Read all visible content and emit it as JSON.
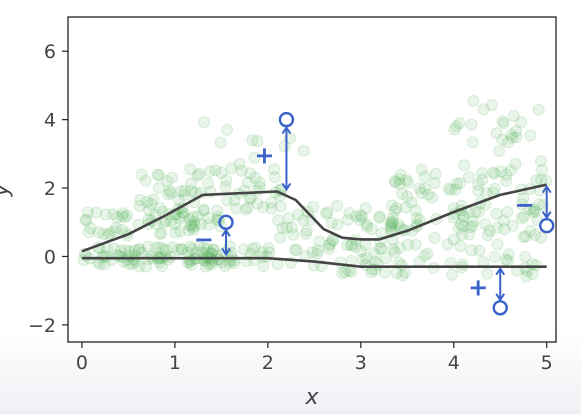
{
  "chart_data": {
    "type": "scatter",
    "title": "",
    "xlabel": "x",
    "ylabel": "y",
    "xlim": [
      -0.15,
      5.1
    ],
    "ylim": [
      -2.5,
      7.0
    ],
    "x_ticks": [
      "0",
      "1",
      "2",
      "3",
      "4",
      "5"
    ],
    "y_ticks": [
      "−2",
      "0",
      "2",
      "4",
      "6"
    ],
    "x_tick_values": [
      0,
      1,
      2,
      3,
      4,
      5
    ],
    "y_tick_values": [
      -2,
      0,
      2,
      4,
      6
    ],
    "grid": false,
    "scatter_color": "#4caf50",
    "line_color": "#444444",
    "annotation_color": "#3a62c8",
    "series": [
      {
        "type": "line",
        "points": [
          {
            "x": 0.0,
            "y": 0.15
          },
          {
            "x": 0.5,
            "y": 0.65
          },
          {
            "x": 0.9,
            "y": 1.2
          },
          {
            "x": 1.3,
            "y": 1.8
          },
          {
            "x": 1.7,
            "y": 1.85
          },
          {
            "x": 2.1,
            "y": 1.9
          },
          {
            "x": 2.3,
            "y": 1.65
          },
          {
            "x": 2.6,
            "y": 0.8
          },
          {
            "x": 2.8,
            "y": 0.55
          },
          {
            "x": 3.0,
            "y": 0.5
          },
          {
            "x": 3.2,
            "y": 0.5
          },
          {
            "x": 3.5,
            "y": 0.75
          },
          {
            "x": 4.0,
            "y": 1.3
          },
          {
            "x": 4.5,
            "y": 1.8
          },
          {
            "x": 5.0,
            "y": 2.1
          }
        ]
      },
      {
        "type": "line",
        "points": [
          {
            "x": 0.0,
            "y": -0.05
          },
          {
            "x": 1.0,
            "y": -0.05
          },
          {
            "x": 2.0,
            "y": -0.05
          },
          {
            "x": 2.5,
            "y": -0.15
          },
          {
            "x": 3.0,
            "y": -0.3
          },
          {
            "x": 4.0,
            "y": -0.3
          },
          {
            "x": 5.0,
            "y": -0.3
          }
        ]
      }
    ],
    "annotations": [
      {
        "x": 2.2,
        "y": 4.0,
        "line_y": 1.9,
        "sign": "+"
      },
      {
        "x": 1.55,
        "y": 1.0,
        "line_y": 0.0,
        "sign": "−"
      },
      {
        "x": 4.5,
        "y": -1.5,
        "line_y": -0.3,
        "sign": "+"
      },
      {
        "x": 5.0,
        "y": 0.9,
        "line_y": 2.1,
        "sign": "−"
      }
    ],
    "scatter_clusters": [
      {
        "x0": 0.0,
        "x1": 2.0,
        "ymin": -0.3,
        "ymax": 0.3,
        "n": 110
      },
      {
        "x0": 0.0,
        "x1": 1.5,
        "ymin": 0.6,
        "ymax": 1.3,
        "n": 60
      },
      {
        "x0": 0.6,
        "x1": 2.2,
        "ymin": 1.3,
        "ymax": 2.6,
        "n": 70
      },
      {
        "x0": 2.0,
        "x1": 3.5,
        "ymin": -0.5,
        "ymax": 1.5,
        "n": 80
      },
      {
        "x0": 3.0,
        "x1": 5.0,
        "ymin": -0.6,
        "ymax": 1.0,
        "n": 60
      },
      {
        "x0": 3.3,
        "x1": 5.0,
        "ymin": 0.8,
        "ymax": 2.6,
        "n": 90
      },
      {
        "x0": 4.0,
        "x1": 5.0,
        "ymin": 2.6,
        "ymax": 4.6,
        "n": 25
      },
      {
        "x0": 1.0,
        "x1": 2.5,
        "ymin": 2.6,
        "ymax": 4.0,
        "n": 10
      }
    ]
  }
}
